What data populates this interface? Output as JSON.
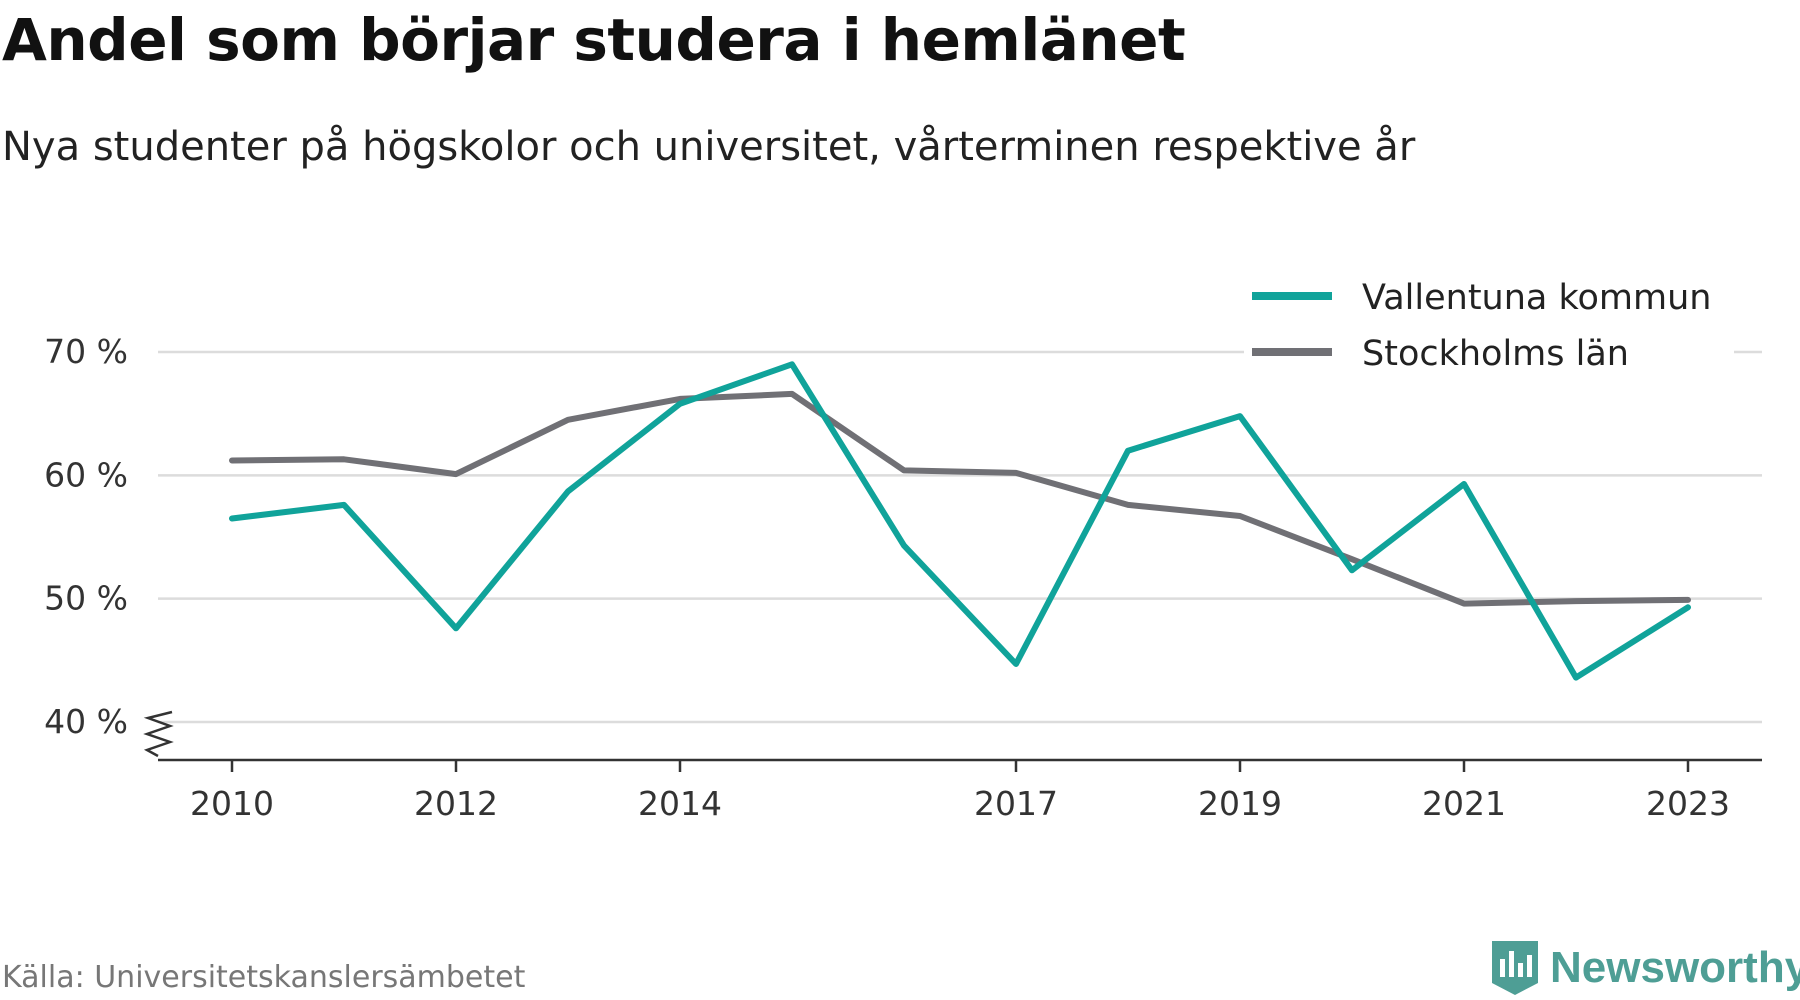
{
  "title": "Andel som börjar studera i hemlänet",
  "subtitle": "Nya studenter på högskolor och universitet, vårterminen respektive år",
  "source": "Källa: Universitetskanslersämbetet",
  "brand": {
    "name": "Newsworthy",
    "icon": "newsworthy-logo-icon",
    "color": "#4e9e95"
  },
  "chart_data": {
    "type": "line",
    "x": [
      2010,
      2011,
      2012,
      2013,
      2014,
      2015,
      2016,
      2017,
      2018,
      2019,
      2020,
      2021,
      2022,
      2023
    ],
    "x_tick_labels": [
      "2010",
      "2012",
      "2014",
      "2017",
      "2019",
      "2021",
      "2023"
    ],
    "y_tick_labels": [
      "40 %",
      "50 %",
      "60 %",
      "70 %"
    ],
    "y_ticks": [
      40,
      50,
      60,
      70
    ],
    "ylim": [
      40,
      70
    ],
    "y_axis_break": true,
    "grid": true,
    "legend_position": "top-right",
    "series": [
      {
        "name": "Vallentuna kommun",
        "color": "#10a39a",
        "values": [
          56.5,
          57.6,
          47.6,
          58.7,
          65.8,
          69.0,
          54.3,
          44.7,
          62.0,
          64.8,
          52.3,
          59.3,
          43.6,
          49.3
        ]
      },
      {
        "name": "Stockholms län",
        "color": "#707075",
        "values": [
          61.2,
          61.3,
          60.1,
          64.5,
          66.2,
          66.6,
          60.4,
          60.2,
          57.6,
          56.7,
          53.2,
          49.6,
          49.8,
          49.9
        ]
      }
    ]
  }
}
